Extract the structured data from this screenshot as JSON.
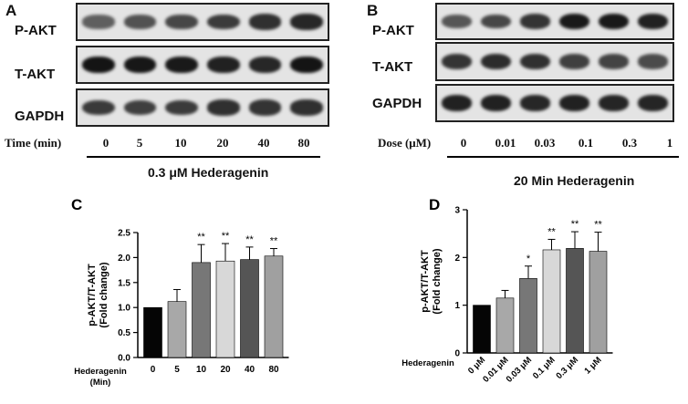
{
  "panel_A": {
    "letter": "A",
    "rows": [
      "P-AKT",
      "T-AKT",
      "GAPDH"
    ],
    "axis_label": "Time (min)",
    "ticks": [
      "0",
      "5",
      "10",
      "20",
      "40",
      "80"
    ],
    "caption": "0.3 μM Hederagenin",
    "band_intensity": [
      [
        0.55,
        0.62,
        0.68,
        0.74,
        0.8,
        0.85
      ],
      [
        0.95,
        0.93,
        0.92,
        0.88,
        0.85,
        0.95
      ],
      [
        0.75,
        0.72,
        0.74,
        0.8,
        0.78,
        0.8
      ]
    ]
  },
  "panel_B": {
    "letter": "B",
    "rows": [
      "P-AKT",
      "T-AKT",
      "GAPDH"
    ],
    "axis_label": "Dose (μM)",
    "ticks": [
      "0",
      "0.01",
      "0.03",
      "0.1",
      "0.3",
      "1"
    ],
    "caption": "20 Min Hederagenin",
    "band_intensity": [
      [
        0.6,
        0.68,
        0.78,
        0.92,
        0.92,
        0.88
      ],
      [
        0.78,
        0.82,
        0.8,
        0.72,
        0.7,
        0.66
      ],
      [
        0.88,
        0.88,
        0.85,
        0.88,
        0.86,
        0.86
      ]
    ]
  },
  "chart_data": [
    {
      "panel": "C",
      "type": "bar",
      "ylabel_lines": [
        "p-AKT/T-AKT",
        "(Fold change)"
      ],
      "xlabel_lines": [
        "Hederagenin",
        "(Min)"
      ],
      "categories": [
        "0",
        "5",
        "10",
        "20",
        "40",
        "80"
      ],
      "values": [
        1.0,
        1.12,
        1.9,
        1.93,
        1.96,
        2.03
      ],
      "errors": [
        0.0,
        0.24,
        0.36,
        0.35,
        0.25,
        0.15
      ],
      "significance": [
        "",
        "",
        "**",
        "**",
        "**",
        "**"
      ],
      "colors": [
        "#050505",
        "#a8a8a8",
        "#777777",
        "#d8d8d8",
        "#555555",
        "#a0a0a0"
      ],
      "ylim": [
        0,
        2.5
      ],
      "yticks": [
        "0.0",
        "0.5",
        "1.0",
        "1.5",
        "2.0",
        "2.5"
      ]
    },
    {
      "panel": "D",
      "type": "bar",
      "ylabel_lines": [
        "p-AKT/T-AKT",
        "(Fold change)"
      ],
      "xlabel_lines": [
        "Hederagenin"
      ],
      "categories": [
        "0 μM",
        "0.01 μM",
        "0.03 μM",
        "0.1 μM",
        "0.3 μM",
        "1 μM"
      ],
      "values": [
        1.0,
        1.15,
        1.56,
        2.16,
        2.19,
        2.13
      ],
      "errors": [
        0.0,
        0.16,
        0.26,
        0.22,
        0.35,
        0.4
      ],
      "significance": [
        "",
        "",
        "*",
        "**",
        "**",
        "**"
      ],
      "colors": [
        "#050505",
        "#a8a8a8",
        "#777777",
        "#d8d8d8",
        "#555555",
        "#a0a0a0"
      ],
      "ylim": [
        0,
        3
      ],
      "yticks": [
        "0",
        "1",
        "2",
        "3"
      ]
    }
  ]
}
